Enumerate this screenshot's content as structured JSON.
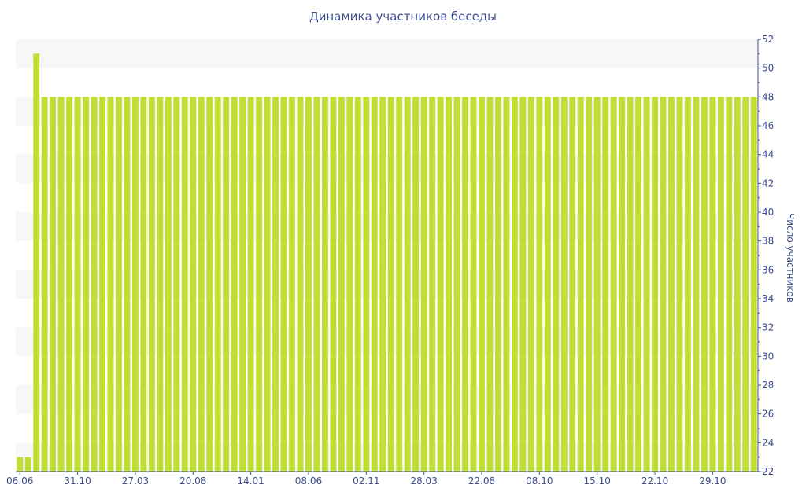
{
  "chart_data": {
    "type": "bar",
    "title": "Динамика участников беседы",
    "xlabel": "",
    "ylabel": "Число участников",
    "ylim": [
      22,
      52
    ],
    "y_ticks": [
      22,
      24,
      26,
      28,
      30,
      32,
      34,
      36,
      38,
      40,
      42,
      44,
      46,
      48,
      50,
      52
    ],
    "x_ticks": [
      {
        "index": 0,
        "label": "06.06"
      },
      {
        "index": 7,
        "label": "31.10"
      },
      {
        "index": 14,
        "label": "27.03"
      },
      {
        "index": 21,
        "label": "20.08"
      },
      {
        "index": 28,
        "label": "14.01"
      },
      {
        "index": 35,
        "label": "08.06"
      },
      {
        "index": 42,
        "label": "02.11"
      },
      {
        "index": 49,
        "label": "28.03"
      },
      {
        "index": 56,
        "label": "22.08"
      },
      {
        "index": 63,
        "label": "08.10"
      },
      {
        "index": 70,
        "label": "15.10"
      },
      {
        "index": 77,
        "label": "22.10"
      },
      {
        "index": 84,
        "label": "29.10"
      }
    ],
    "values": [
      23,
      23,
      51,
      48,
      48,
      48,
      48,
      48,
      48,
      48,
      48,
      48,
      48,
      48,
      48,
      48,
      48,
      48,
      48,
      48,
      48,
      48,
      48,
      48,
      48,
      48,
      48,
      48,
      48,
      48,
      48,
      48,
      48,
      48,
      48,
      48,
      48,
      48,
      48,
      48,
      48,
      48,
      48,
      48,
      48,
      48,
      48,
      48,
      48,
      48,
      48,
      48,
      48,
      48,
      48,
      48,
      48,
      48,
      48,
      48,
      48,
      48,
      48,
      48,
      48,
      48,
      48,
      48,
      48,
      48,
      48,
      48,
      48,
      48,
      48,
      48,
      48,
      48,
      48,
      48,
      48,
      48,
      48,
      48,
      48,
      48,
      48,
      48,
      48,
      48
    ],
    "grid": "alternating horizontal bands",
    "y_axis_side": "right",
    "colors": {
      "bar": "#c1de35",
      "text": "#3f4f8f",
      "axis": "#3f4f8f",
      "band": "#f7f7f7"
    }
  }
}
